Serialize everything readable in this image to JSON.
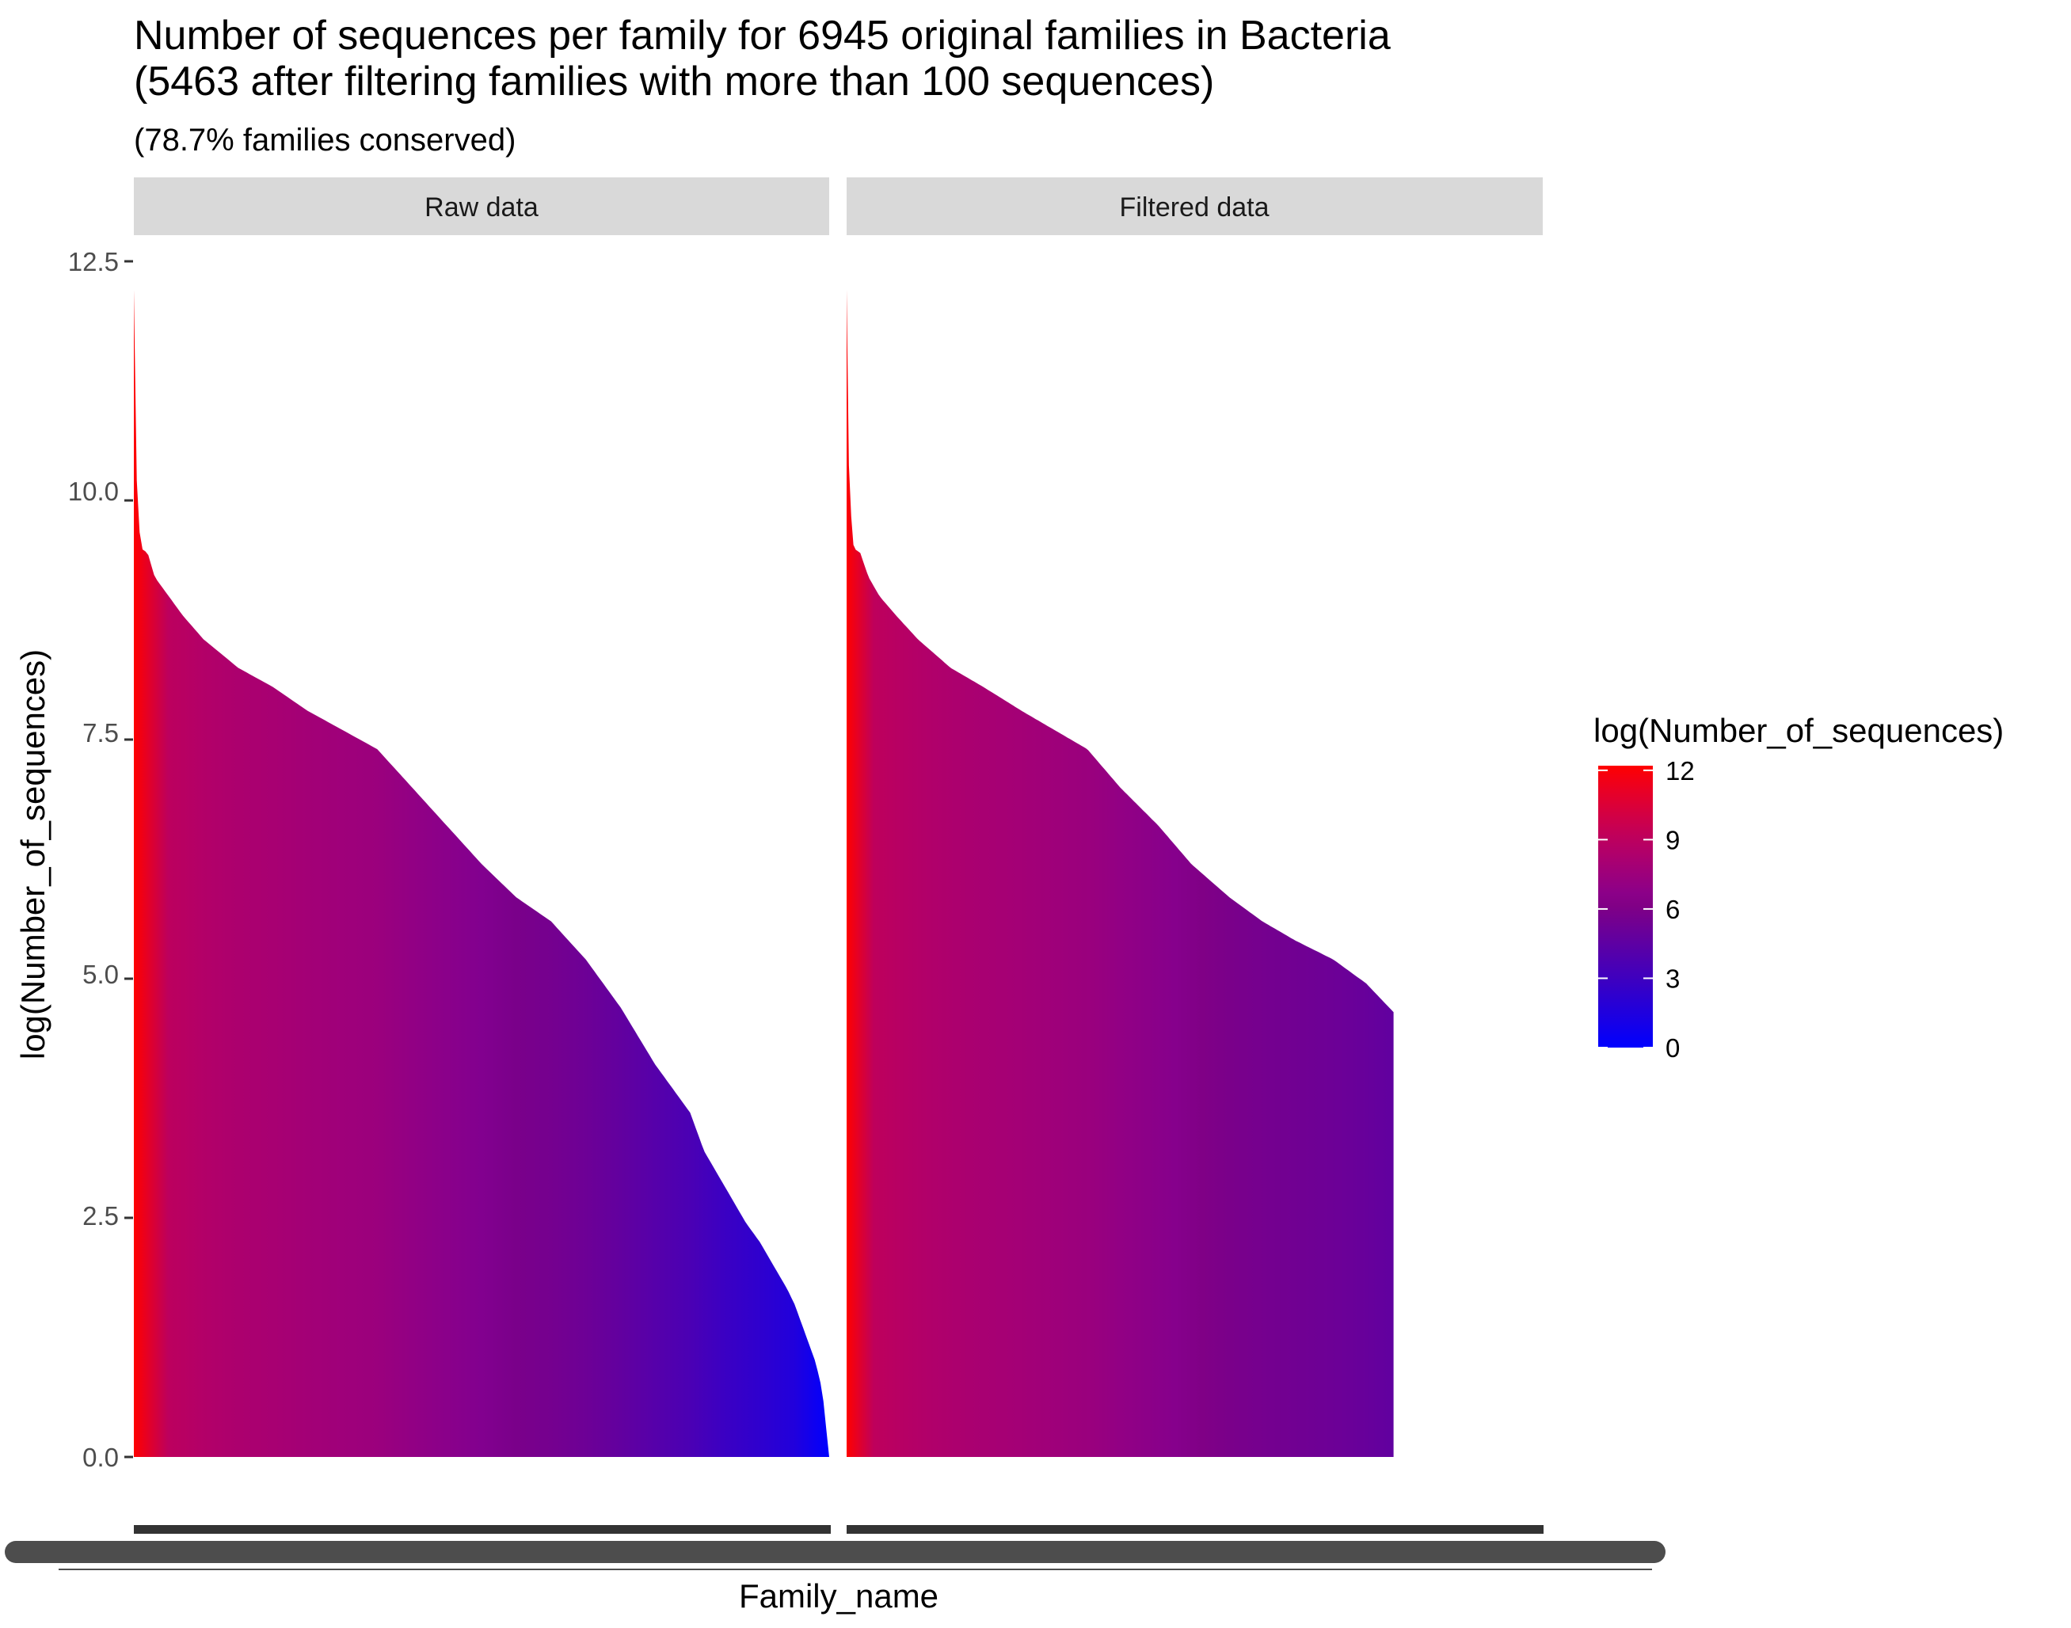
{
  "chart_data": {
    "type": "area",
    "title_lines": [
      "Number of sequences per family for 6945 original families in Bacteria",
      "(5463 after filtering families with more than 100 sequences)"
    ],
    "subtitle": "(78.7% families conserved)",
    "xlabel": "Family_name",
    "ylabel": "log(Number_of_sequences)",
    "y_ticks": [
      "0.0",
      "2.5",
      "5.0",
      "7.5",
      "10.0",
      "12.5"
    ],
    "ylim": [
      0,
      12.5
    ],
    "sort": "descending",
    "color_scale": {
      "title": "log(Number_of_sequences)",
      "low_color": "#0000ff",
      "high_color": "#ff0000",
      "breaks": [
        "0",
        "3",
        "6",
        "9",
        "12"
      ],
      "limits": [
        0,
        12.2
      ]
    },
    "panels": [
      {
        "strip_label": "Raw data",
        "n_families": 6945,
        "rank_fraction": [
          0.0,
          0.001,
          0.005,
          0.01,
          0.02,
          0.03,
          0.05,
          0.07,
          0.1,
          0.15,
          0.2,
          0.25,
          0.3,
          0.35,
          0.4,
          0.45,
          0.5,
          0.55,
          0.6,
          0.65,
          0.7,
          0.75,
          0.8,
          0.82,
          0.84,
          0.86,
          0.88,
          0.9,
          0.92,
          0.94,
          0.95,
          0.96,
          0.97,
          0.98,
          0.99,
          1.0
        ],
        "values": [
          12.2,
          11.0,
          10.0,
          9.5,
          9.45,
          9.2,
          9.0,
          8.8,
          8.55,
          8.25,
          8.05,
          7.8,
          7.6,
          7.4,
          7.0,
          6.6,
          6.2,
          5.85,
          5.6,
          5.2,
          4.7,
          4.1,
          3.6,
          3.2,
          2.95,
          2.7,
          2.45,
          2.25,
          2.0,
          1.75,
          1.6,
          1.4,
          1.2,
          1.0,
          0.7,
          0.0
        ]
      },
      {
        "strip_label": "Filtered data",
        "n_families": 5463,
        "rank_fraction": [
          0.0,
          0.001,
          0.006,
          0.013,
          0.025,
          0.04,
          0.06,
          0.09,
          0.13,
          0.19,
          0.25,
          0.32,
          0.38,
          0.44,
          0.5,
          0.57,
          0.63,
          0.7,
          0.76,
          0.82,
          0.89,
          0.95,
          1.0
        ],
        "values": [
          12.2,
          11.0,
          10.0,
          9.5,
          9.45,
          9.2,
          9.0,
          8.8,
          8.55,
          8.25,
          8.05,
          7.8,
          7.6,
          7.4,
          7.0,
          6.6,
          6.2,
          5.85,
          5.6,
          5.4,
          5.2,
          4.95,
          4.65
        ]
      }
    ]
  }
}
